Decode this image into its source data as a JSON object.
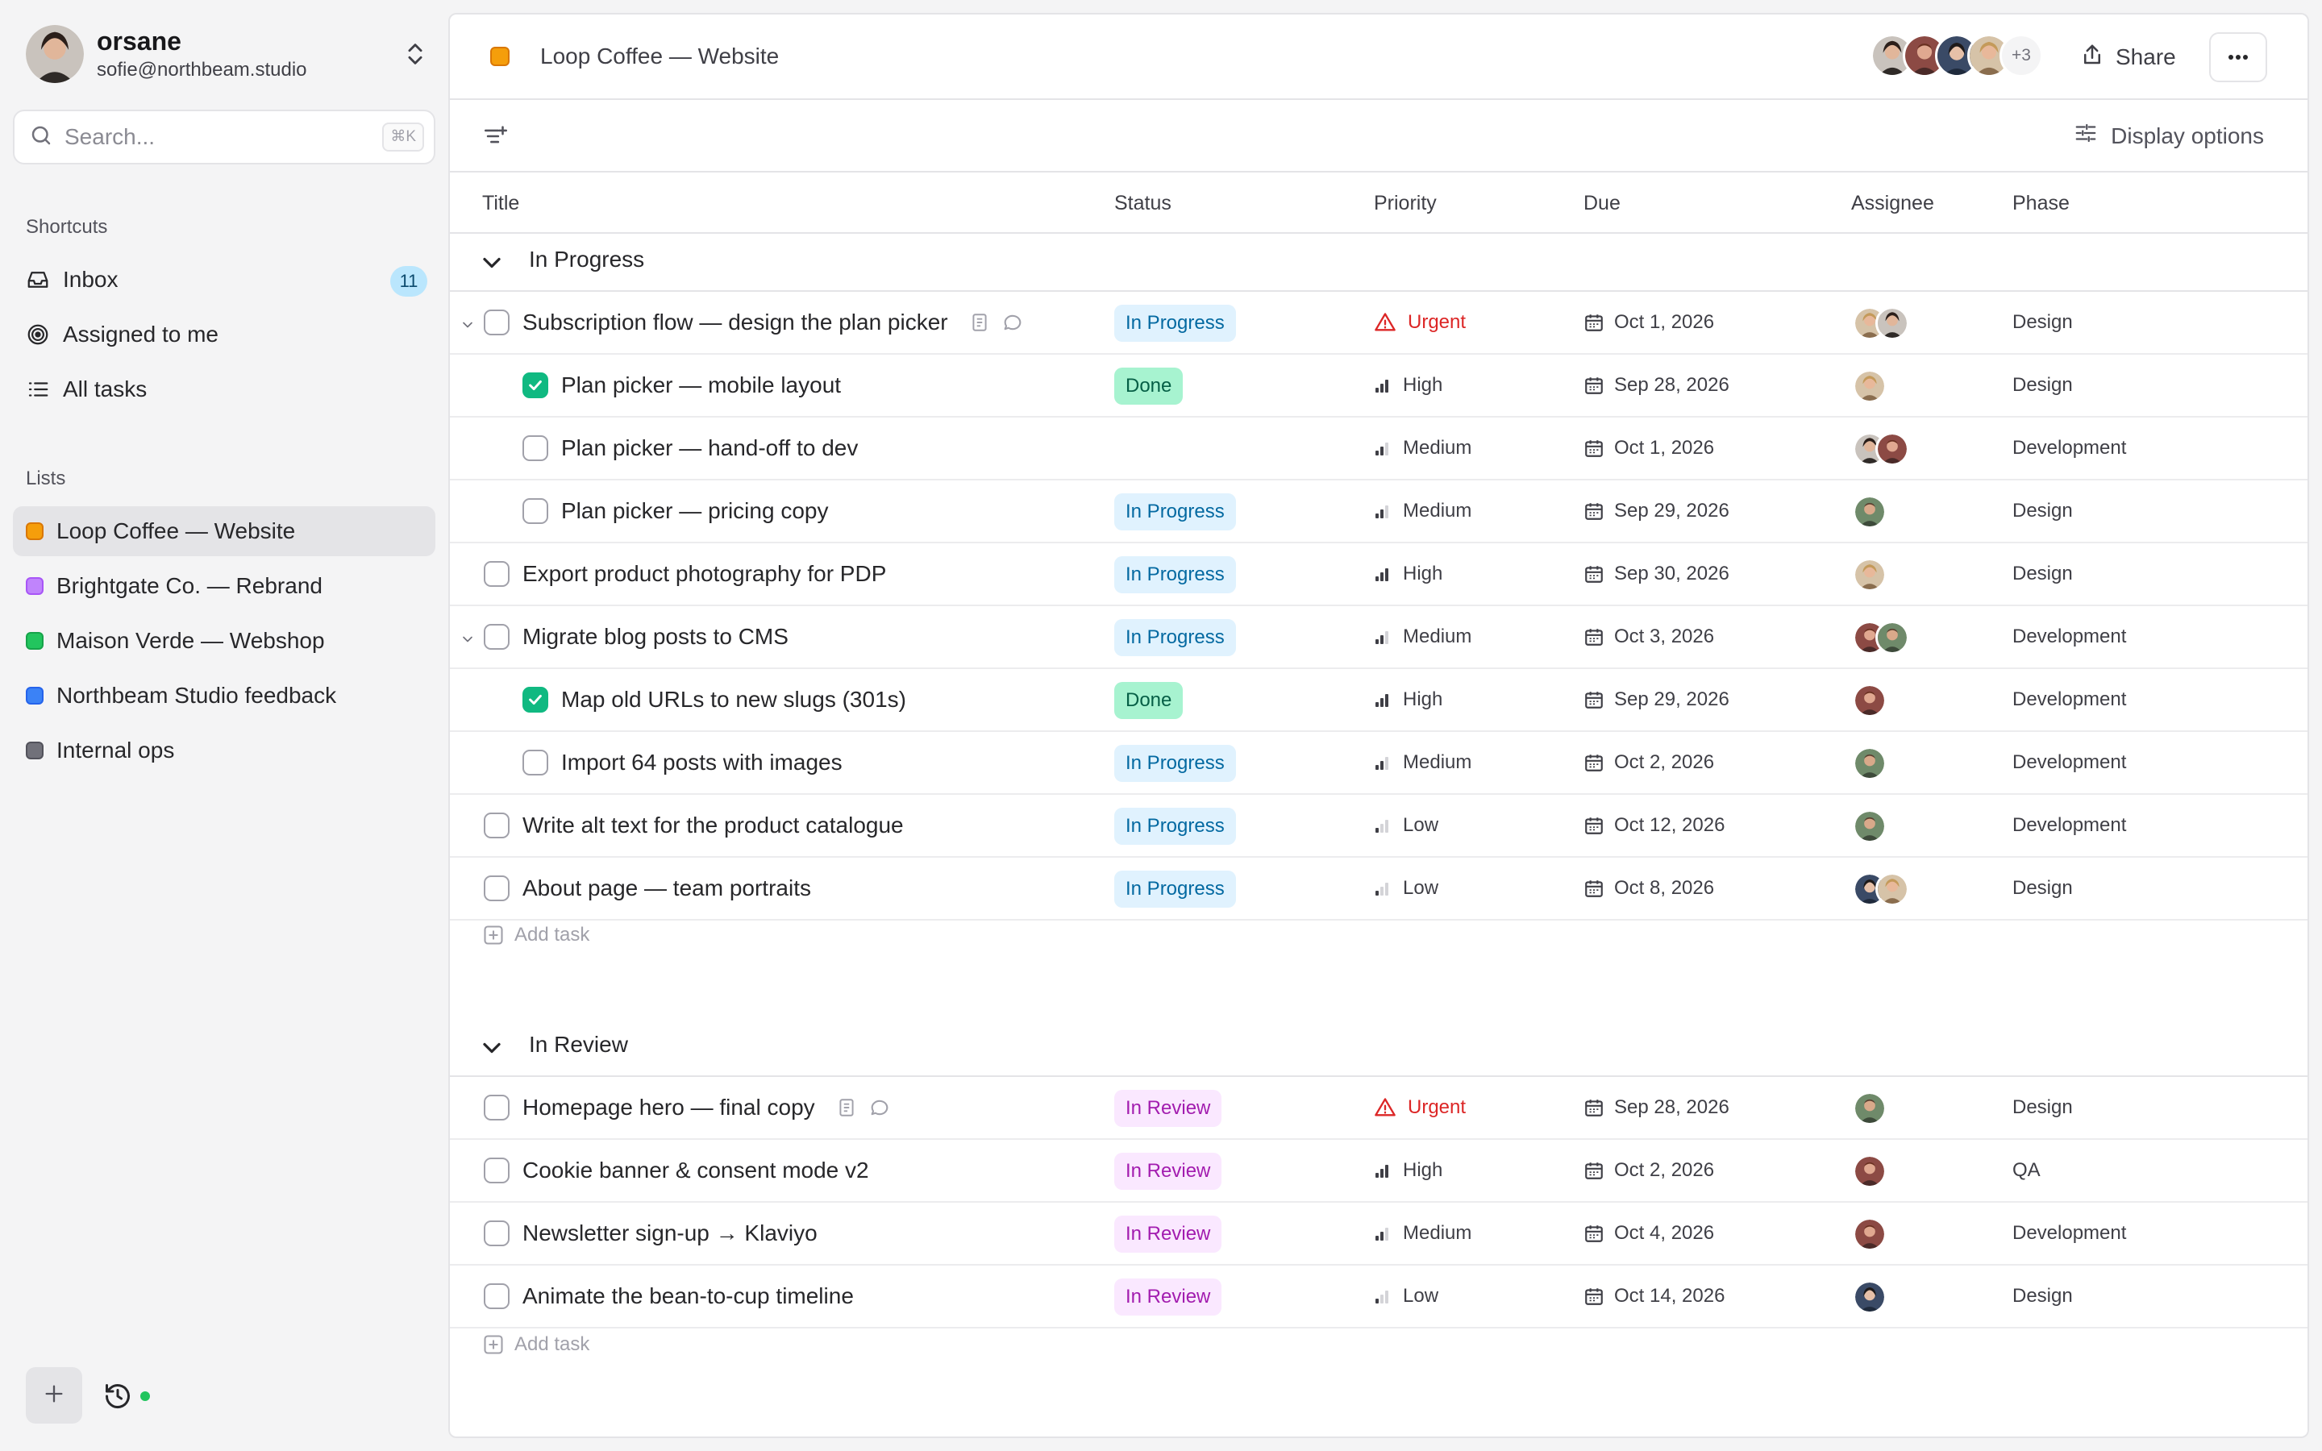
{
  "account": {
    "name": "orsane",
    "email": "sofie@northbeam.studio"
  },
  "search": {
    "placeholder": "Search...",
    "shortcut": "⌘K"
  },
  "shortcuts": {
    "label": "Shortcuts",
    "items": [
      {
        "label": "Inbox",
        "count": "11",
        "icon": "inbox-icon"
      },
      {
        "label": "Assigned to me",
        "icon": "target-icon"
      },
      {
        "label": "All tasks",
        "icon": "list-icon"
      }
    ]
  },
  "lists": {
    "label": "Lists",
    "items": [
      {
        "label": "Loop Coffee — Website",
        "color": "#f59e0b",
        "active": true
      },
      {
        "label": "Brightgate Co. — Rebrand",
        "color": "#c084fc"
      },
      {
        "label": "Maison Verde — Webshop",
        "color": "#22c55e"
      },
      {
        "label": "Northbeam Studio feedback",
        "color": "#3b82f6"
      },
      {
        "label": "Internal ops",
        "color": "#71717a"
      }
    ]
  },
  "project": {
    "title": "Loop Coffee — Website",
    "color": "#f59e0b",
    "extra_members": "+3"
  },
  "header": {
    "share_label": "Share",
    "display_options": "Display options"
  },
  "columns": {
    "title": "Title",
    "status": "Status",
    "priority": "Priority",
    "due": "Due",
    "assignee": "Assignee",
    "phase": "Phase"
  },
  "groups": [
    {
      "name": "In Progress",
      "add_label": "Add task",
      "rows": [
        {
          "title": "Subscription flow — design the plan picker",
          "status": "In Progress",
          "priority": "Urgent",
          "due": "Oct 1, 2026",
          "phase": "Design"
        },
        {
          "title": "Plan picker — mobile layout",
          "status": "Done",
          "priority": "High",
          "due": "Sep 28, 2026",
          "phase": "Design"
        },
        {
          "title": "Plan picker — hand-off to dev",
          "status": "",
          "priority": "Medium",
          "due": "Oct 1, 2026",
          "phase": "Development"
        },
        {
          "title": "Plan picker — pricing copy",
          "status": "In Progress",
          "priority": "Medium",
          "due": "Sep 29, 2026",
          "phase": "Design"
        },
        {
          "title": "Export product photography for PDP",
          "status": "In Progress",
          "priority": "High",
          "due": "Sep 30, 2026",
          "phase": "Design"
        },
        {
          "title": "Migrate blog posts to CMS",
          "status": "In Progress",
          "priority": "Medium",
          "due": "Oct 3, 2026",
          "phase": "Development"
        },
        {
          "title": "Map old URLs to new slugs (301s)",
          "status": "Done",
          "priority": "High",
          "due": "Sep 29, 2026",
          "phase": "Development"
        },
        {
          "title": "Import 64 posts with images",
          "status": "In Progress",
          "priority": "Medium",
          "due": "Oct 2, 2026",
          "phase": "Development"
        },
        {
          "title": "Write alt text for the product catalogue",
          "status": "In Progress",
          "priority": "Low",
          "due": "Oct 12, 2026",
          "phase": "Development"
        },
        {
          "title": "About page — team portraits",
          "status": "In Progress",
          "priority": "Low",
          "due": "Oct 8, 2026",
          "phase": "Design"
        }
      ]
    },
    {
      "name": "In Review",
      "add_label": "Add task",
      "rows": [
        {
          "title": "Homepage hero — final copy",
          "status": "In Review",
          "priority": "Urgent",
          "due": "Sep 28, 2026",
          "phase": "Design"
        },
        {
          "title": "Cookie banner & consent mode v2",
          "status": "In Review",
          "priority": "High",
          "due": "Oct 2, 2026",
          "phase": "QA"
        },
        {
          "title": "Newsletter sign-up → Klaviyo",
          "status": "In Review",
          "priority": "Medium",
          "due": "Oct 4, 2026",
          "phase": "Development"
        },
        {
          "title": "Animate the bean-to-cup timeline",
          "status": "In Review",
          "priority": "Low",
          "due": "Oct 14, 2026",
          "phase": "Design"
        }
      ]
    }
  ]
}
